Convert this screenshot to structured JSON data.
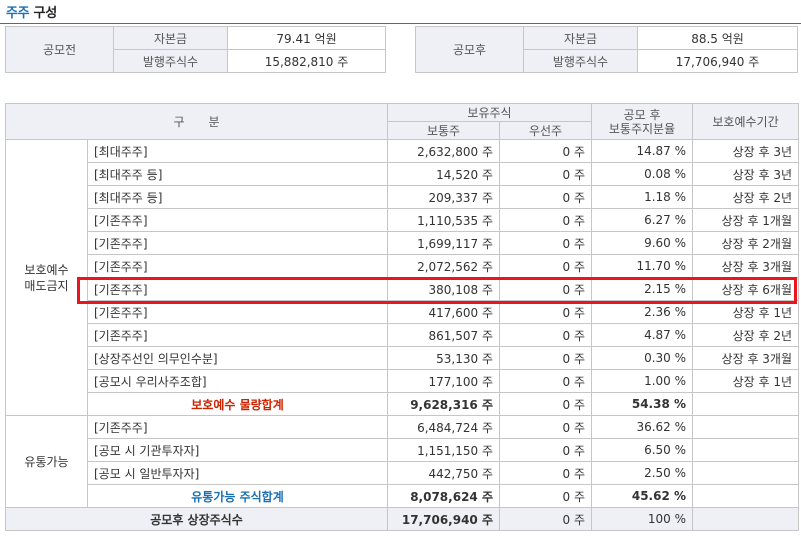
{
  "title": {
    "part1": "주주",
    "part2": " 구성"
  },
  "pre_ipo": {
    "label": "공모전",
    "capital_label": "자본금",
    "capital_value": "79.41 억원",
    "shares_label": "발행주식수",
    "shares_value": "15,882,810 주"
  },
  "post_ipo": {
    "label": "공모후",
    "capital_label": "자본금",
    "capital_value": "88.5 억원",
    "shares_label": "발행주식수",
    "shares_value": "17,706,940 주"
  },
  "main_table": {
    "headers": {
      "category": "구　　분",
      "holdings": "보유주식",
      "common": "보통주",
      "preferred": "우선주",
      "ratio_line1": "공모 후",
      "ratio_line2": "보통주지분율",
      "lockup": "보호예수기간"
    },
    "lockup_group": {
      "label_line1": "보호예수",
      "label_line2": "매도금지",
      "rows": [
        {
          "name": "[최대주주]",
          "common": "2,632,800 주",
          "preferred": "0 주",
          "ratio": "14.87 %",
          "period": "상장 후 3년"
        },
        {
          "name": "[최대주주 등]",
          "common": "14,520 주",
          "preferred": "0 주",
          "ratio": "0.08 %",
          "period": "상장 후 3년"
        },
        {
          "name": "[최대주주 등]",
          "common": "209,337 주",
          "preferred": "0 주",
          "ratio": "1.18 %",
          "period": "상장 후 2년"
        },
        {
          "name": "[기존주주]",
          "common": "1,110,535 주",
          "preferred": "0 주",
          "ratio": "6.27 %",
          "period": "상장 후 1개월"
        },
        {
          "name": "[기존주주]",
          "common": "1,699,117 주",
          "preferred": "0 주",
          "ratio": "9.60 %",
          "period": "상장 후 2개월"
        },
        {
          "name": "[기존주주]",
          "common": "2,072,562 주",
          "preferred": "0 주",
          "ratio": "11.70 %",
          "period": "상장 후 3개월"
        },
        {
          "name": "[기존주주]",
          "common": "380,108 주",
          "preferred": "0 주",
          "ratio": "2.15 %",
          "period": "상장 후 6개월"
        },
        {
          "name": "[기존주주]",
          "common": "417,600 주",
          "preferred": "0 주",
          "ratio": "2.36 %",
          "period": "상장 후 1년"
        },
        {
          "name": "[기존주주]",
          "common": "861,507 주",
          "preferred": "0 주",
          "ratio": "4.87 %",
          "period": "상장 후 2년"
        },
        {
          "name": "[상장주선인 의무인수분]",
          "common": "53,130 주",
          "preferred": "0 주",
          "ratio": "0.30 %",
          "period": "상장 후 3개월"
        },
        {
          "name": "[공모시 우리사주조합]",
          "common": "177,100 주",
          "preferred": "0 주",
          "ratio": "1.00 %",
          "period": "상장 후 1년"
        }
      ],
      "subtotal": {
        "name": "보호예수 물량합계",
        "common": "9,628,316 주",
        "preferred": "0 주",
        "ratio": "54.38 %",
        "period": ""
      }
    },
    "float_group": {
      "label": "유통가능",
      "rows": [
        {
          "name": "[기존주주]",
          "common": "6,484,724 주",
          "preferred": "0 주",
          "ratio": "36.62 %",
          "period": ""
        },
        {
          "name": "[공모 시 기관투자자]",
          "common": "1,151,150 주",
          "preferred": "0 주",
          "ratio": "6.50 %",
          "period": ""
        },
        {
          "name": "[공모 시 일반투자자]",
          "common": "442,750 주",
          "preferred": "0 주",
          "ratio": "2.50 %",
          "period": ""
        }
      ],
      "subtotal": {
        "name": "유통가능 주식합계",
        "common": "8,078,624 주",
        "preferred": "0 주",
        "ratio": "45.62 %",
        "period": ""
      }
    },
    "total": {
      "name": "공모후 상장주식수",
      "common": "17,706,940 주",
      "preferred": "0 주",
      "ratio": "100 %",
      "period": ""
    }
  },
  "colors": {
    "highlight_border": "#e8161d",
    "header_bg": "#eef0f5",
    "title_accent": "#1a6fb5",
    "lockup_total": "#cc2200",
    "float_total": "#1a6fb5"
  }
}
